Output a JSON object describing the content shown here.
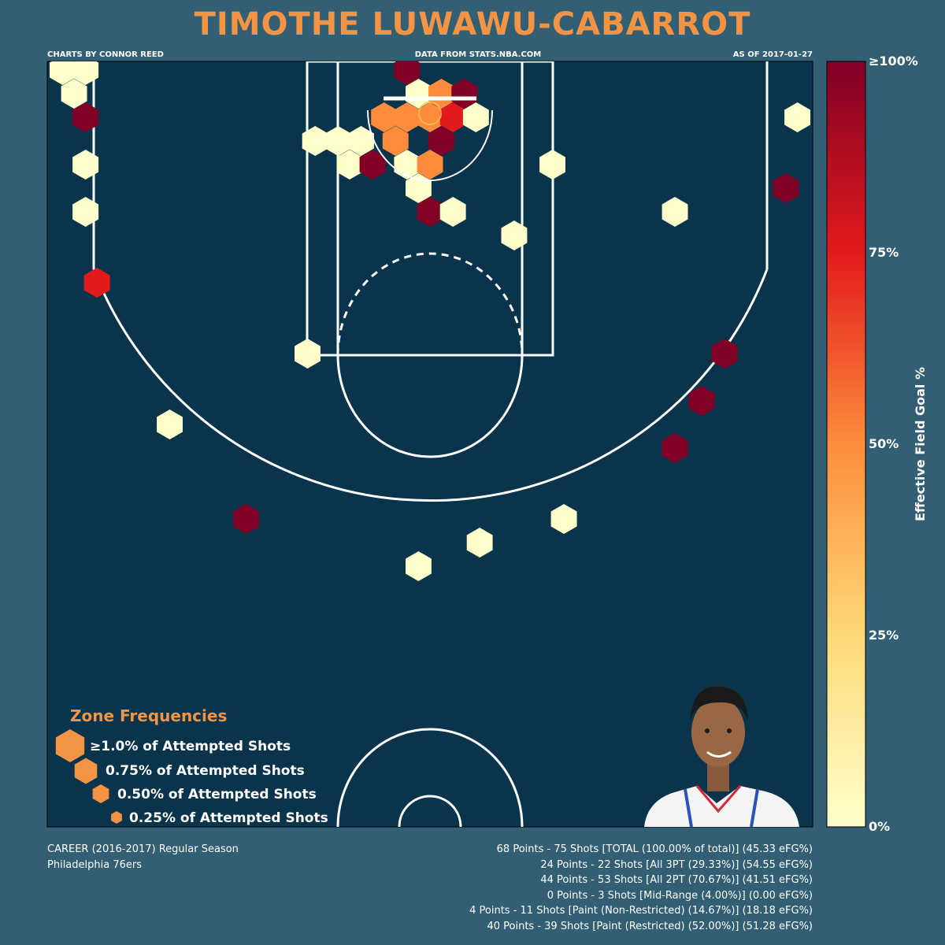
{
  "header": {
    "title": "TIMOTHE LUWAWU-CABARROT",
    "credit": "CHARTS BY CONNOR REED",
    "source": "DATA FROM STATS.NBA.COM",
    "date": "AS OF 2017-01-27"
  },
  "colors": {
    "background": "#335f74",
    "court": "#0a344b",
    "accent": "#f29444",
    "lines": "#ffffff"
  },
  "chart_data": {
    "type": "hexbin",
    "colorbar": {
      "label": "Effective Field Goal %",
      "ticks": [
        "0%",
        "25%",
        "50%",
        "75%",
        "≥100%"
      ],
      "range": [
        0,
        100
      ]
    },
    "points": [
      {
        "x": -480,
        "y": -5,
        "efg": 0
      },
      {
        "x": -450,
        "y": -5,
        "efg": 0
      },
      {
        "x": -465,
        "y": 25,
        "efg": 0
      },
      {
        "x": -450,
        "y": 55,
        "efg": 100
      },
      {
        "x": -450,
        "y": 115,
        "efg": 0
      },
      {
        "x": -450,
        "y": 175,
        "efg": 0
      },
      {
        "x": -435,
        "y": 265,
        "efg": 75
      },
      {
        "x": -30,
        "y": -5,
        "efg": 100
      },
      {
        "x": -15,
        "y": 25,
        "efg": 0
      },
      {
        "x": 15,
        "y": 25,
        "efg": 50
      },
      {
        "x": 45,
        "y": 25,
        "efg": 100
      },
      {
        "x": -60,
        "y": 55,
        "efg": 50
      },
      {
        "x": -30,
        "y": 55,
        "efg": 50
      },
      {
        "x": 0,
        "y": 55,
        "efg": 50
      },
      {
        "x": 30,
        "y": 55,
        "efg": 75
      },
      {
        "x": 60,
        "y": 55,
        "efg": 0
      },
      {
        "x": -150,
        "y": 85,
        "efg": 0
      },
      {
        "x": -120,
        "y": 85,
        "efg": 0
      },
      {
        "x": -90,
        "y": 85,
        "efg": 0
      },
      {
        "x": -45,
        "y": 85,
        "efg": 50
      },
      {
        "x": 15,
        "y": 85,
        "efg": 100
      },
      {
        "x": -105,
        "y": 115,
        "efg": 0
      },
      {
        "x": -75,
        "y": 115,
        "efg": 100
      },
      {
        "x": -30,
        "y": 115,
        "efg": 0
      },
      {
        "x": 0,
        "y": 115,
        "efg": 50
      },
      {
        "x": -15,
        "y": 145,
        "efg": 0
      },
      {
        "x": 0,
        "y": 175,
        "efg": 100
      },
      {
        "x": 30,
        "y": 175,
        "efg": 0
      },
      {
        "x": 160,
        "y": 115,
        "efg": 0
      },
      {
        "x": 110,
        "y": 205,
        "efg": 0
      },
      {
        "x": -160,
        "y": 355,
        "efg": 0
      },
      {
        "x": -340,
        "y": 445,
        "efg": 0
      },
      {
        "x": -240,
        "y": 565,
        "efg": 100
      },
      {
        "x": -15,
        "y": 625,
        "efg": 0
      },
      {
        "x": 65,
        "y": 595,
        "efg": 0
      },
      {
        "x": 175,
        "y": 565,
        "efg": 0
      },
      {
        "x": 320,
        "y": 175,
        "efg": 0
      },
      {
        "x": 480,
        "y": 55,
        "efg": 0
      },
      {
        "x": 465,
        "y": 145,
        "efg": 100
      },
      {
        "x": 385,
        "y": 355,
        "efg": 100
      },
      {
        "x": 355,
        "y": 415,
        "efg": 100
      },
      {
        "x": 320,
        "y": 475,
        "efg": 100
      }
    ]
  },
  "legend": {
    "title": "Zone Frequencies",
    "items": [
      "≥1.0% of Attempted Shots",
      "0.75% of Attempted Shots",
      "0.50% of Attempted Shots",
      "0.25% of Attempted Shots"
    ]
  },
  "player_photo": "headshot-icon",
  "footer": {
    "season": "CAREER (2016-2017) Regular Season",
    "team": "Philadelphia 76ers",
    "stats": [
      "68 Points - 75 Shots [TOTAL (100.00% of total)] (45.33 eFG%)",
      "24 Points - 22 Shots [All 3PT (29.33%)] (54.55 eFG%)",
      "44 Points - 53 Shots [All 2PT (70.67%)] (41.51 eFG%)",
      "0 Points - 3 Shots [Mid-Range (4.00%)] (0.00 eFG%)",
      "4 Points - 11 Shots [Paint (Non-Restricted) (14.67%)] (18.18 eFG%)",
      "40 Points - 39 Shots [Paint (Restricted) (52.00%)] (51.28 eFG%)"
    ]
  }
}
